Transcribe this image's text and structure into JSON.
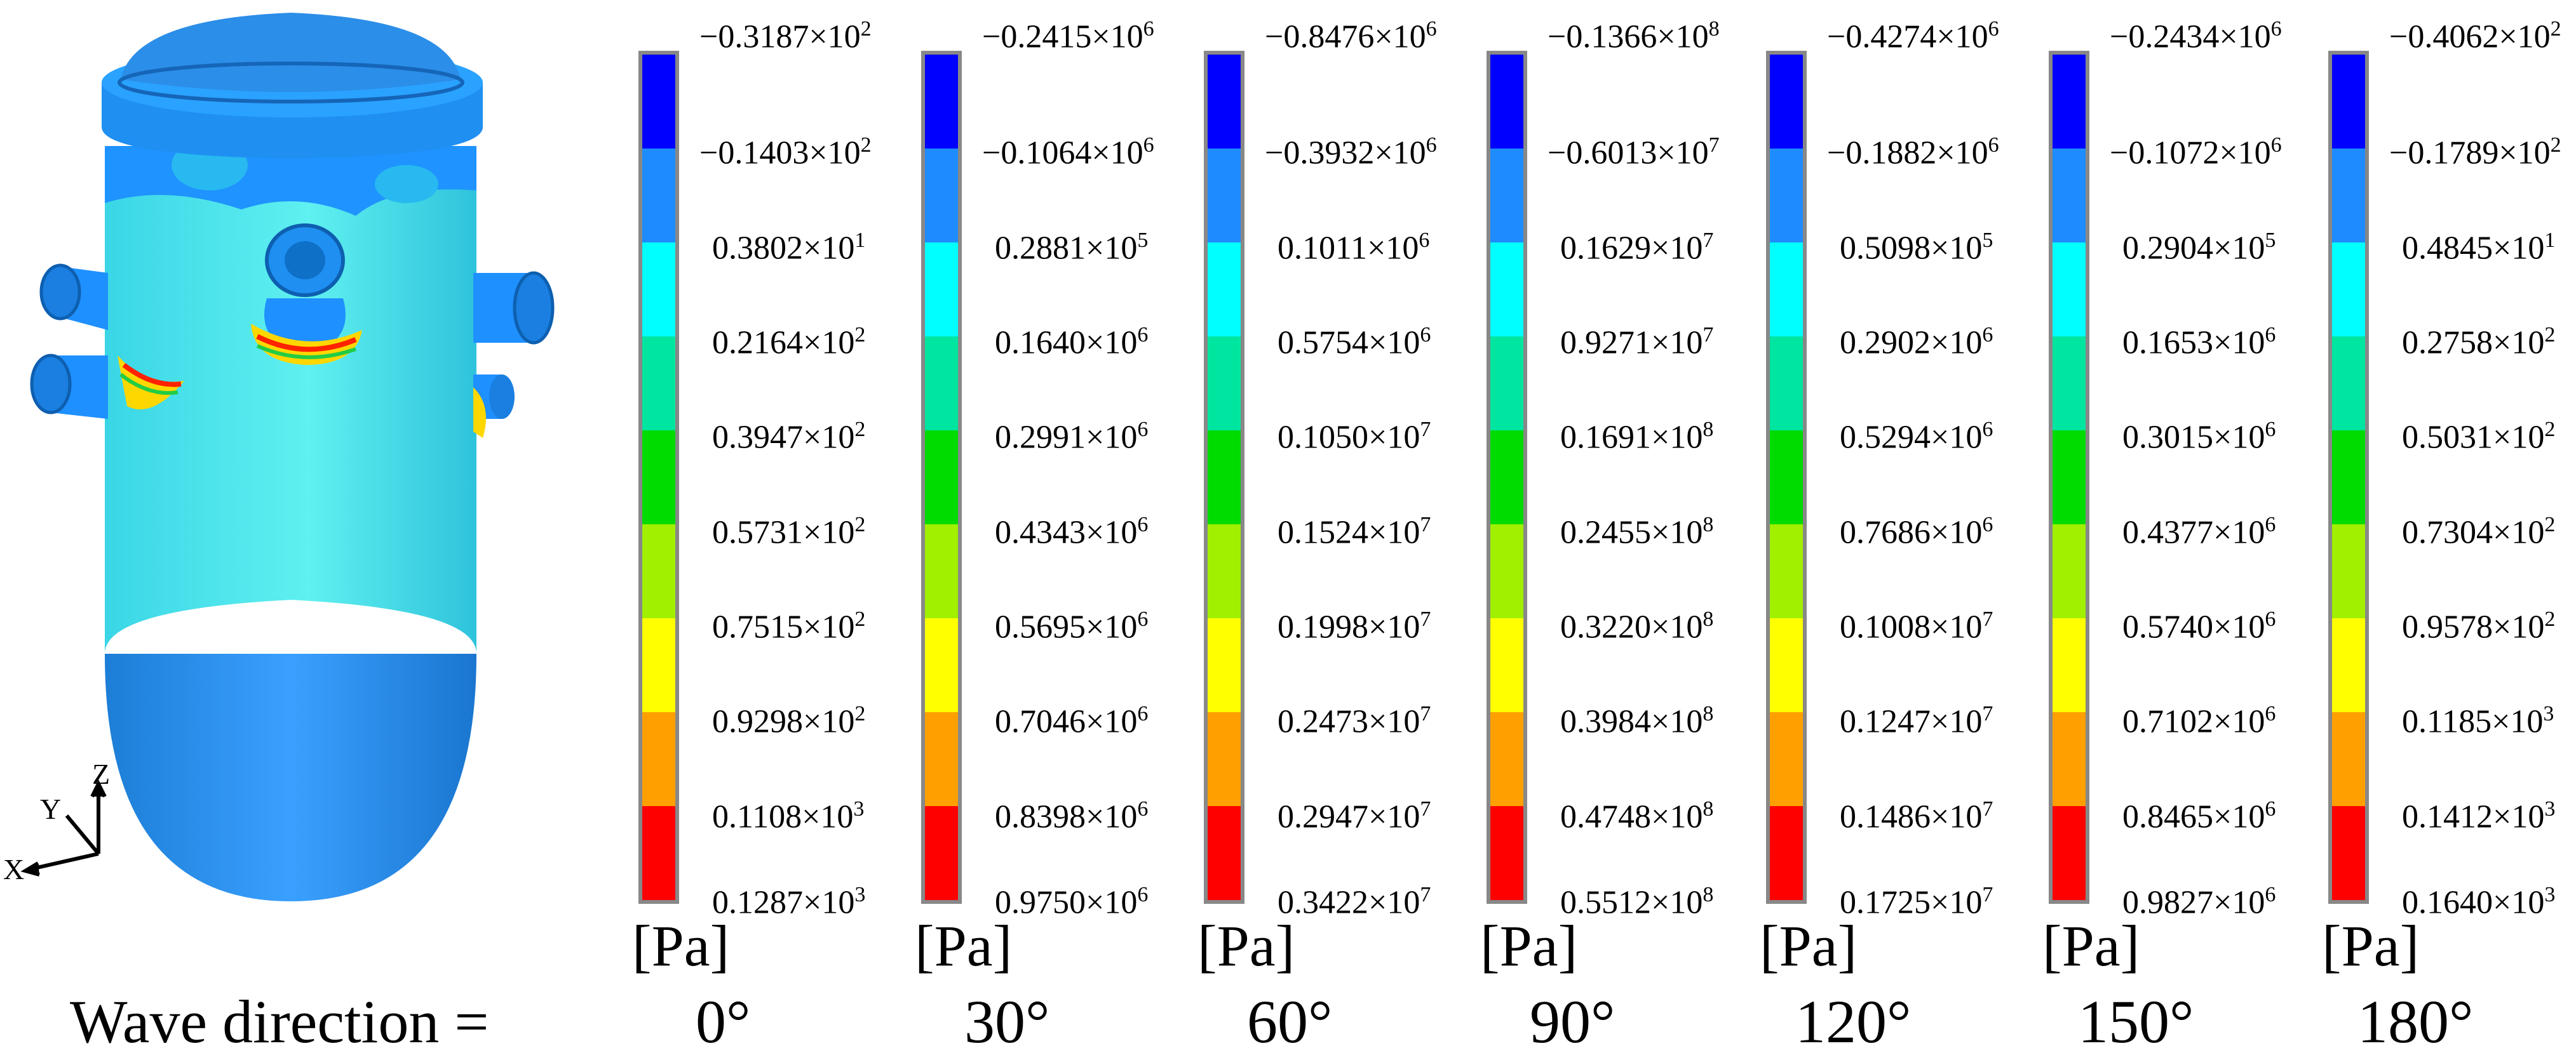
{
  "figure": {
    "row_label": "Wave direction =",
    "unit": "[Pa]",
    "axis_triad": {
      "x": "X",
      "y": "Y",
      "z": "Z"
    },
    "band_colors": [
      "#0000ff",
      "#1e8cff",
      "#00ffff",
      "#00e6a0",
      "#00dc00",
      "#a0f000",
      "#ffff00",
      "#ffa000",
      "#ff0000"
    ],
    "legends": [
      {
        "direction": "0°",
        "ticks": [
          {
            "m": "−0.3187×10",
            "e": "2"
          },
          {
            "m": "−0.1403×10",
            "e": "2"
          },
          {
            "m": "0.3802×10",
            "e": "1"
          },
          {
            "m": "0.2164×10",
            "e": "2"
          },
          {
            "m": "0.3947×10",
            "e": "2"
          },
          {
            "m": "0.5731×10",
            "e": "2"
          },
          {
            "m": "0.7515×10",
            "e": "2"
          },
          {
            "m": "0.9298×10",
            "e": "2"
          },
          {
            "m": "0.1108×10",
            "e": "3"
          },
          {
            "m": "0.1287×10",
            "e": "3"
          }
        ]
      },
      {
        "direction": "30°",
        "ticks": [
          {
            "m": "−0.2415×10",
            "e": "6"
          },
          {
            "m": "−0.1064×10",
            "e": "6"
          },
          {
            "m": "0.2881×10",
            "e": "5"
          },
          {
            "m": "0.1640×10",
            "e": "6"
          },
          {
            "m": "0.2991×10",
            "e": "6"
          },
          {
            "m": "0.4343×10",
            "e": "6"
          },
          {
            "m": "0.5695×10",
            "e": "6"
          },
          {
            "m": "0.7046×10",
            "e": "6"
          },
          {
            "m": "0.8398×10",
            "e": "6"
          },
          {
            "m": "0.9750×10",
            "e": "6"
          }
        ]
      },
      {
        "direction": "60°",
        "ticks": [
          {
            "m": "−0.8476×10",
            "e": "6"
          },
          {
            "m": "−0.3932×10",
            "e": "6"
          },
          {
            "m": "0.1011×10",
            "e": "6"
          },
          {
            "m": "0.5754×10",
            "e": "6"
          },
          {
            "m": "0.1050×10",
            "e": "7"
          },
          {
            "m": "0.1524×10",
            "e": "7"
          },
          {
            "m": "0.1998×10",
            "e": "7"
          },
          {
            "m": "0.2473×10",
            "e": "7"
          },
          {
            "m": "0.2947×10",
            "e": "7"
          },
          {
            "m": "0.3422×10",
            "e": "7"
          }
        ]
      },
      {
        "direction": "90°",
        "ticks": [
          {
            "m": "−0.1366×10",
            "e": "8"
          },
          {
            "m": "−0.6013×10",
            "e": "7"
          },
          {
            "m": "0.1629×10",
            "e": "7"
          },
          {
            "m": "0.9271×10",
            "e": "7"
          },
          {
            "m": "0.1691×10",
            "e": "8"
          },
          {
            "m": "0.2455×10",
            "e": "8"
          },
          {
            "m": "0.3220×10",
            "e": "8"
          },
          {
            "m": "0.3984×10",
            "e": "8"
          },
          {
            "m": "0.4748×10",
            "e": "8"
          },
          {
            "m": "0.5512×10",
            "e": "8"
          }
        ]
      },
      {
        "direction": "120°",
        "ticks": [
          {
            "m": "−0.4274×10",
            "e": "6"
          },
          {
            "m": "−0.1882×10",
            "e": "6"
          },
          {
            "m": "0.5098×10",
            "e": "5"
          },
          {
            "m": "0.2902×10",
            "e": "6"
          },
          {
            "m": "0.5294×10",
            "e": "6"
          },
          {
            "m": "0.7686×10",
            "e": "6"
          },
          {
            "m": "0.1008×10",
            "e": "7"
          },
          {
            "m": "0.1247×10",
            "e": "7"
          },
          {
            "m": "0.1486×10",
            "e": "7"
          },
          {
            "m": "0.1725×10",
            "e": "7"
          }
        ]
      },
      {
        "direction": "150°",
        "ticks": [
          {
            "m": "−0.2434×10",
            "e": "6"
          },
          {
            "m": "−0.1072×10",
            "e": "6"
          },
          {
            "m": "0.2904×10",
            "e": "5"
          },
          {
            "m": "0.1653×10",
            "e": "6"
          },
          {
            "m": "0.3015×10",
            "e": "6"
          },
          {
            "m": "0.4377×10",
            "e": "6"
          },
          {
            "m": "0.5740×10",
            "e": "6"
          },
          {
            "m": "0.7102×10",
            "e": "6"
          },
          {
            "m": "0.8465×10",
            "e": "6"
          },
          {
            "m": "0.9827×10",
            "e": "6"
          }
        ]
      },
      {
        "direction": "180°",
        "ticks": [
          {
            "m": "−0.4062×10",
            "e": "2"
          },
          {
            "m": "−0.1789×10",
            "e": "2"
          },
          {
            "m": "0.4845×10",
            "e": "1"
          },
          {
            "m": "0.2758×10",
            "e": "2"
          },
          {
            "m": "0.5031×10",
            "e": "2"
          },
          {
            "m": "0.7304×10",
            "e": "2"
          },
          {
            "m": "0.9578×10",
            "e": "2"
          },
          {
            "m": "0.1185×10",
            "e": "3"
          },
          {
            "m": "0.1412×10",
            "e": "3"
          },
          {
            "m": "0.1640×10",
            "e": "3"
          }
        ]
      }
    ]
  }
}
